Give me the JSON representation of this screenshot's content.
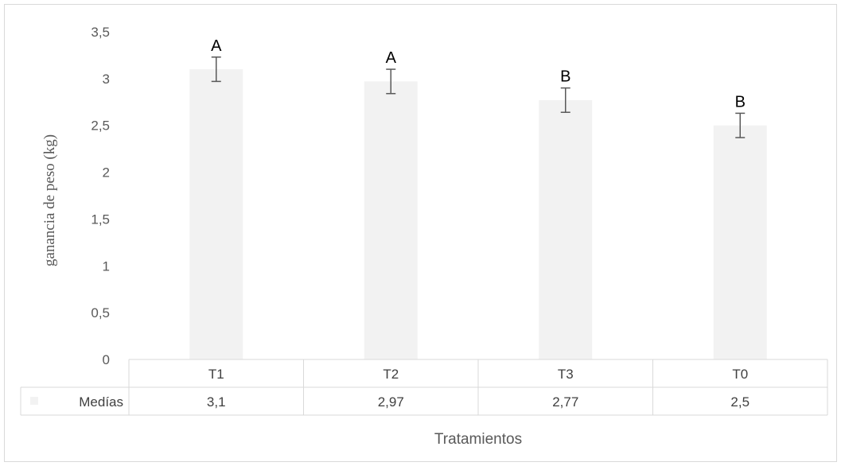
{
  "chart_data": {
    "type": "bar",
    "categories": [
      "T1",
      "T2",
      "T3",
      "T0"
    ],
    "series": [
      {
        "name": "Medías",
        "values": [
          3.1,
          2.97,
          2.77,
          2.5
        ],
        "value_labels": [
          "3,1",
          "2,97",
          "2,77",
          "2,5"
        ],
        "error": [
          0.13,
          0.13,
          0.13,
          0.13
        ],
        "significance": [
          "A",
          "A",
          "B",
          "B"
        ],
        "color": "#f2f2f2"
      }
    ],
    "xlabel": "Tratamientos",
    "ylabel": "ganancia de peso (kg)",
    "ylim": [
      0,
      3.5
    ],
    "yticks": [
      0,
      0.5,
      1,
      1.5,
      2,
      2.5,
      3,
      3.5
    ],
    "ytick_labels": [
      "0",
      "0,5",
      "1",
      "1,5",
      "2",
      "2,5",
      "3",
      "3,5"
    ],
    "grid": false,
    "legend": "data-table-left",
    "data_table": true,
    "colors": {
      "bar": "#f2f2f2",
      "error_bar": "#595959",
      "table_border": "#d9d9d9",
      "text": "#595959"
    }
  }
}
